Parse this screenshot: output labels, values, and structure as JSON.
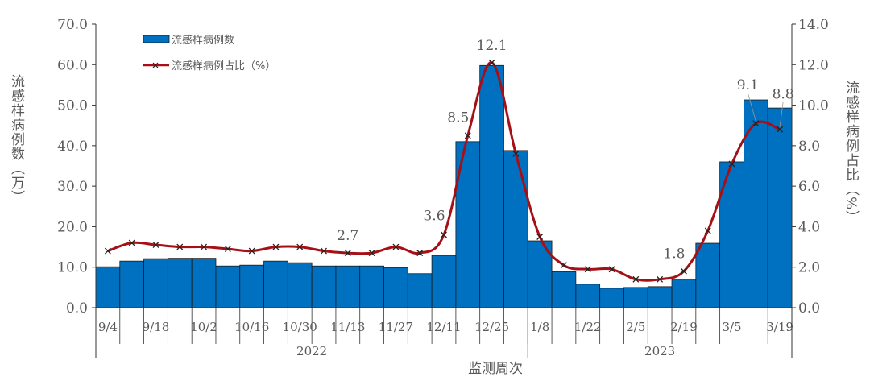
{
  "chart_data": {
    "type": "bar+line",
    "xlabel": "监测周次",
    "ylabel_left": "流感样病例数（万）",
    "ylabel_right": "流感样病例占比（%）",
    "ylim_left": [
      0,
      70
    ],
    "ylim_right": [
      0,
      14
    ],
    "yticks_left": [
      "0.0",
      "10.0",
      "20.0",
      "30.0",
      "40.0",
      "50.0",
      "60.0",
      "70.0"
    ],
    "yticks_right": [
      "0.0",
      "2.0",
      "4.0",
      "6.0",
      "8.0",
      "10.0",
      "12.0",
      "14.0"
    ],
    "grid": false,
    "legend_position": "top-left",
    "tick_labels": [
      "9/4",
      "",
      "9/18",
      "",
      "10/2",
      "",
      "10/16",
      "",
      "10/30",
      "",
      "11/13",
      "",
      "11/27",
      "",
      "12/11",
      "",
      "12/25",
      "",
      "1/8",
      "",
      "1/22",
      "",
      "2/5",
      "",
      "2/19",
      "",
      "3/5",
      "",
      "3/19"
    ],
    "years": [
      {
        "label": "2022",
        "count": 18
      },
      {
        "label": "2023",
        "count": 11
      }
    ],
    "series": [
      {
        "name": "流感样病例数",
        "type": "bar",
        "axis": "left",
        "color": "#0070C0",
        "values": [
          10.1,
          11.5,
          12.1,
          12.2,
          12.2,
          10.3,
          10.5,
          11.5,
          11.1,
          10.3,
          10.3,
          10.3,
          9.9,
          8.4,
          12.9,
          41.0,
          59.8,
          38.8,
          16.5,
          8.9,
          5.8,
          4.8,
          5.0,
          5.2,
          7.0,
          15.9,
          36.0,
          51.3,
          49.3
        ]
      },
      {
        "name": "流感样病例占比（%）",
        "type": "line",
        "axis": "right",
        "color": "#A50F15",
        "marker": "x",
        "values": [
          2.8,
          3.2,
          3.1,
          3.0,
          3.0,
          2.9,
          2.8,
          3.0,
          3.0,
          2.8,
          2.7,
          2.7,
          3.0,
          2.7,
          3.6,
          8.5,
          12.1,
          7.6,
          3.5,
          2.1,
          1.9,
          1.9,
          1.4,
          1.4,
          1.8,
          3.8,
          7.1,
          9.1,
          8.8
        ]
      }
    ],
    "annotations": [
      {
        "index": 10,
        "text": "2.7"
      },
      {
        "index": 14,
        "text": "3.6"
      },
      {
        "index": 15,
        "text": "8.5"
      },
      {
        "index": 16,
        "text": "12.1"
      },
      {
        "index": 24,
        "text": "1.8"
      },
      {
        "index": 27,
        "text": "9.1"
      },
      {
        "index": 28,
        "text": "8.8"
      }
    ]
  }
}
